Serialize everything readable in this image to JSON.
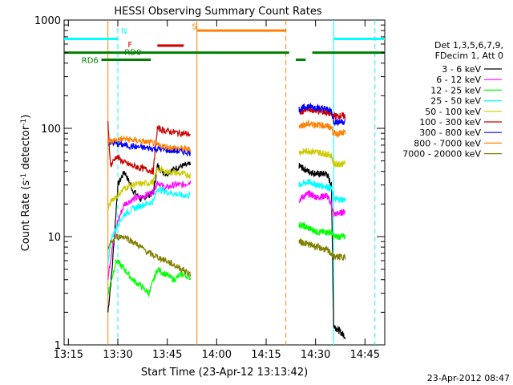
{
  "chart_data": {
    "type": "line",
    "title": "HESSI Observing Summary Count Rates",
    "xlabel": "Start Time (23-Apr-12 13:13:42)",
    "ylabel_main": "Count Rate (s",
    "ylabel_sup1": "-1",
    "ylabel_mid": " detector",
    "ylabel_sup2": "-1",
    "ylabel_end": ")",
    "timestamp": "23-Apr-2012 08:47",
    "y_scale": "log",
    "ylim": [
      1,
      1000
    ],
    "xlim": [
      "13:13:42",
      "14:51:00"
    ],
    "x_ticks": [
      "13:15",
      "13:30",
      "13:45",
      "14:00",
      "14:15",
      "14:30",
      "14:45"
    ],
    "y_ticks": [
      "1",
      "10",
      "100",
      "1000"
    ],
    "legend_header": [
      "Det 1,3,5,6,7,9,",
      "FDecim 1, Att 0"
    ],
    "legend_position": "right",
    "series": [
      {
        "name": "3 - 6 keV",
        "color": "#000000",
        "segments": [
          {
            "start": "13:27:00",
            "end": "13:52:00",
            "points": [
              [
                0,
                2
              ],
              [
                0.05,
                5
              ],
              [
                0.12,
                30
              ],
              [
                0.2,
                40
              ],
              [
                0.3,
                27
              ],
              [
                0.4,
                22
              ],
              [
                0.48,
                24
              ],
              [
                0.55,
                25
              ],
              [
                0.6,
                45
              ],
              [
                0.7,
                38
              ],
              [
                0.8,
                42
              ],
              [
                0.9,
                45
              ],
              [
                1,
                46
              ]
            ]
          },
          {
            "start": "14:25:00",
            "end": "14:39:00",
            "points": [
              [
                0,
                45
              ],
              [
                0.2,
                40
              ],
              [
                0.4,
                38
              ],
              [
                0.6,
                38
              ],
              [
                0.7,
                30
              ],
              [
                0.75,
                1.5
              ],
              [
                1,
                1.2
              ]
            ]
          }
        ]
      },
      {
        "name": "6 - 12 keV",
        "color": "#ff00ff",
        "segments": [
          {
            "start": "13:27:00",
            "end": "13:52:00",
            "points": [
              [
                0,
                4
              ],
              [
                0.05,
                8
              ],
              [
                0.12,
                14
              ],
              [
                0.2,
                20
              ],
              [
                0.3,
                22
              ],
              [
                0.45,
                24
              ],
              [
                0.55,
                26
              ],
              [
                0.6,
                32
              ],
              [
                0.7,
                28
              ],
              [
                0.8,
                30
              ],
              [
                0.9,
                30
              ],
              [
                1,
                32
              ]
            ]
          },
          {
            "start": "14:25:00",
            "end": "14:39:00",
            "points": [
              [
                0,
                22
              ],
              [
                0.2,
                25
              ],
              [
                0.4,
                23
              ],
              [
                0.6,
                24
              ],
              [
                0.7,
                20
              ],
              [
                0.75,
                16
              ],
              [
                1,
                17
              ]
            ]
          }
        ]
      },
      {
        "name": "12 - 25 keV",
        "color": "#00ff00",
        "segments": [
          {
            "start": "13:27:00",
            "end": "13:52:00",
            "points": [
              [
                0,
                3
              ],
              [
                0.1,
                6
              ],
              [
                0.2,
                5
              ],
              [
                0.3,
                4
              ],
              [
                0.4,
                3.5
              ],
              [
                0.5,
                3
              ],
              [
                0.6,
                5
              ],
              [
                0.7,
                4.5
              ],
              [
                0.8,
                4
              ],
              [
                0.9,
                4.5
              ],
              [
                1,
                4.2
              ]
            ]
          },
          {
            "start": "14:25:00",
            "end": "14:39:00",
            "points": [
              [
                0,
                13
              ],
              [
                0.2,
                12
              ],
              [
                0.4,
                11
              ],
              [
                0.6,
                11
              ],
              [
                0.7,
                11
              ],
              [
                0.75,
                10
              ],
              [
                1,
                10
              ]
            ]
          }
        ]
      },
      {
        "name": "25 - 50 keV",
        "color": "#00ffff",
        "segments": [
          {
            "start": "13:27:00",
            "end": "13:52:00",
            "points": [
              [
                0,
                6
              ],
              [
                0.05,
                10
              ],
              [
                0.12,
                13
              ],
              [
                0.2,
                16
              ],
              [
                0.3,
                18
              ],
              [
                0.45,
                20
              ],
              [
                0.55,
                21
              ],
              [
                0.6,
                28
              ],
              [
                0.7,
                26
              ],
              [
                0.8,
                25
              ],
              [
                0.9,
                24
              ],
              [
                1,
                24
              ]
            ]
          },
          {
            "start": "14:25:00",
            "end": "14:39:00",
            "points": [
              [
                0,
                30
              ],
              [
                0.2,
                32
              ],
              [
                0.4,
                30
              ],
              [
                0.6,
                29
              ],
              [
                0.7,
                28
              ],
              [
                0.75,
                22
              ],
              [
                1,
                22
              ]
            ]
          }
        ]
      },
      {
        "name": "50 - 100 keV",
        "color": "#cccc00",
        "segments": [
          {
            "start": "13:27:00",
            "end": "13:52:00",
            "points": [
              [
                0,
                18
              ],
              [
                0.05,
                22
              ],
              [
                0.12,
                24
              ],
              [
                0.2,
                28
              ],
              [
                0.3,
                30
              ],
              [
                0.45,
                31
              ],
              [
                0.55,
                32
              ],
              [
                0.6,
                42
              ],
              [
                0.7,
                40
              ],
              [
                0.8,
                39
              ],
              [
                0.9,
                38
              ],
              [
                1,
                37
              ]
            ]
          },
          {
            "start": "14:25:00",
            "end": "14:39:00",
            "points": [
              [
                0,
                60
              ],
              [
                0.2,
                62
              ],
              [
                0.4,
                60
              ],
              [
                0.6,
                58
              ],
              [
                0.7,
                56
              ],
              [
                0.75,
                47
              ],
              [
                1,
                47
              ]
            ]
          }
        ]
      },
      {
        "name": "100 - 300 keV",
        "color": "#cc0000",
        "segments": [
          {
            "start": "13:27:00",
            "end": "13:52:00",
            "points": [
              [
                0,
                120
              ],
              [
                0.03,
                45
              ],
              [
                0.1,
                55
              ],
              [
                0.2,
                48
              ],
              [
                0.3,
                45
              ],
              [
                0.45,
                42
              ],
              [
                0.55,
                40
              ],
              [
                0.6,
                100
              ],
              [
                0.7,
                95
              ],
              [
                0.8,
                92
              ],
              [
                0.9,
                90
              ],
              [
                1,
                88
              ]
            ]
          },
          {
            "start": "14:25:00",
            "end": "14:39:00",
            "points": [
              [
                0,
                140
              ],
              [
                0.2,
                150
              ],
              [
                0.4,
                145
              ],
              [
                0.6,
                140
              ],
              [
                0.7,
                135
              ],
              [
                0.75,
                130
              ],
              [
                1,
                130
              ]
            ]
          }
        ]
      },
      {
        "name": "300 - 800 keV",
        "color": "#0000ff",
        "segments": [
          {
            "start": "13:27:00",
            "end": "13:52:00",
            "points": [
              [
                0,
                75
              ],
              [
                0.1,
                72
              ],
              [
                0.2,
                70
              ],
              [
                0.3,
                68
              ],
              [
                0.45,
                66
              ],
              [
                0.55,
                65
              ],
              [
                0.6,
                65
              ],
              [
                0.7,
                63
              ],
              [
                0.8,
                62
              ],
              [
                0.9,
                61
              ],
              [
                1,
                60
              ]
            ]
          },
          {
            "start": "14:25:00",
            "end": "14:39:00",
            "points": [
              [
                0,
                150
              ],
              [
                0.2,
                160
              ],
              [
                0.4,
                155
              ],
              [
                0.6,
                150
              ],
              [
                0.7,
                145
              ],
              [
                0.75,
                115
              ],
              [
                1,
                115
              ]
            ]
          }
        ]
      },
      {
        "name": "800 - 7000 keV",
        "color": "#ff8000",
        "segments": [
          {
            "start": "13:27:00",
            "end": "13:52:00",
            "points": [
              [
                0,
                75
              ],
              [
                0.1,
                78
              ],
              [
                0.2,
                80
              ],
              [
                0.3,
                78
              ],
              [
                0.45,
                75
              ],
              [
                0.55,
                73
              ],
              [
                0.6,
                70
              ],
              [
                0.7,
                68
              ],
              [
                0.8,
                66
              ],
              [
                0.9,
                65
              ],
              [
                1,
                64
              ]
            ]
          },
          {
            "start": "14:25:00",
            "end": "14:39:00",
            "points": [
              [
                0,
                105
              ],
              [
                0.2,
                110
              ],
              [
                0.4,
                108
              ],
              [
                0.6,
                105
              ],
              [
                0.7,
                102
              ],
              [
                0.75,
                90
              ],
              [
                1,
                90
              ]
            ]
          }
        ]
      },
      {
        "name": "7000 - 20000 keV",
        "color": "#808000",
        "segments": [
          {
            "start": "13:27:00",
            "end": "13:52:00",
            "points": [
              [
                0,
                8
              ],
              [
                0.05,
                9
              ],
              [
                0.1,
                10
              ],
              [
                0.2,
                10
              ],
              [
                0.3,
                9
              ],
              [
                0.4,
                8
              ],
              [
                0.5,
                7
              ],
              [
                0.6,
                6.5
              ],
              [
                0.7,
                6
              ],
              [
                0.8,
                5.5
              ],
              [
                0.9,
                5
              ],
              [
                1,
                4.5
              ]
            ]
          },
          {
            "start": "14:25:00",
            "end": "14:39:00",
            "points": [
              [
                0,
                9
              ],
              [
                0.2,
                8.5
              ],
              [
                0.4,
                8
              ],
              [
                0.6,
                7.5
              ],
              [
                0.7,
                7
              ],
              [
                0.75,
                6.5
              ],
              [
                1,
                6.5
              ]
            ]
          }
        ]
      }
    ],
    "flags": [
      {
        "label": "N",
        "color": "#00ffff",
        "label_time": "13:31:00",
        "label_value": 800,
        "segments": [
          {
            "start": "13:13:42",
            "end": "13:30:00",
            "value": 670
          },
          {
            "start": "14:35:30",
            "end": "14:51:00",
            "value": 670
          }
        ]
      },
      {
        "label": "F",
        "color": "#cc0000",
        "label_time": "13:33:00",
        "label_value": 600,
        "segments": [
          {
            "start": "13:42:00",
            "end": "13:50:00",
            "value": 580
          }
        ]
      },
      {
        "label": "S",
        "color": "#ff8000",
        "label_time": "13:52:30",
        "label_value": 880,
        "segments": [
          {
            "start": "13:54:00",
            "end": "14:21:00",
            "value": 800
          }
        ]
      },
      {
        "label": "RD0",
        "color": "#008000",
        "label_time": "13:32:00",
        "label_value": 510,
        "segments": [
          {
            "start": "13:13:42",
            "end": "14:22:00",
            "value": 500
          },
          {
            "start": "14:24:00",
            "end": "14:27:00",
            "value": 430
          },
          {
            "start": "14:29:00",
            "end": "14:51:00",
            "value": 500
          }
        ]
      },
      {
        "label": "RD6",
        "color": "#008000",
        "label_time": "13:19:00",
        "label_value": 430,
        "segments": [
          {
            "start": "13:25:00",
            "end": "13:40:00",
            "value": 430
          }
        ]
      }
    ],
    "vlines": [
      {
        "time": "13:27:00",
        "color": "#ff8000",
        "dash": false
      },
      {
        "time": "13:30:00",
        "color": "#00ffff",
        "dash": true
      },
      {
        "time": "13:54:00",
        "color": "#ff8000",
        "dash": false
      },
      {
        "time": "14:21:00",
        "color": "#ff8000",
        "dash": true
      },
      {
        "time": "14:35:30",
        "color": "#00ffff",
        "dash": false
      },
      {
        "time": "14:48:00",
        "color": "#00ffff",
        "dash": true
      }
    ]
  }
}
